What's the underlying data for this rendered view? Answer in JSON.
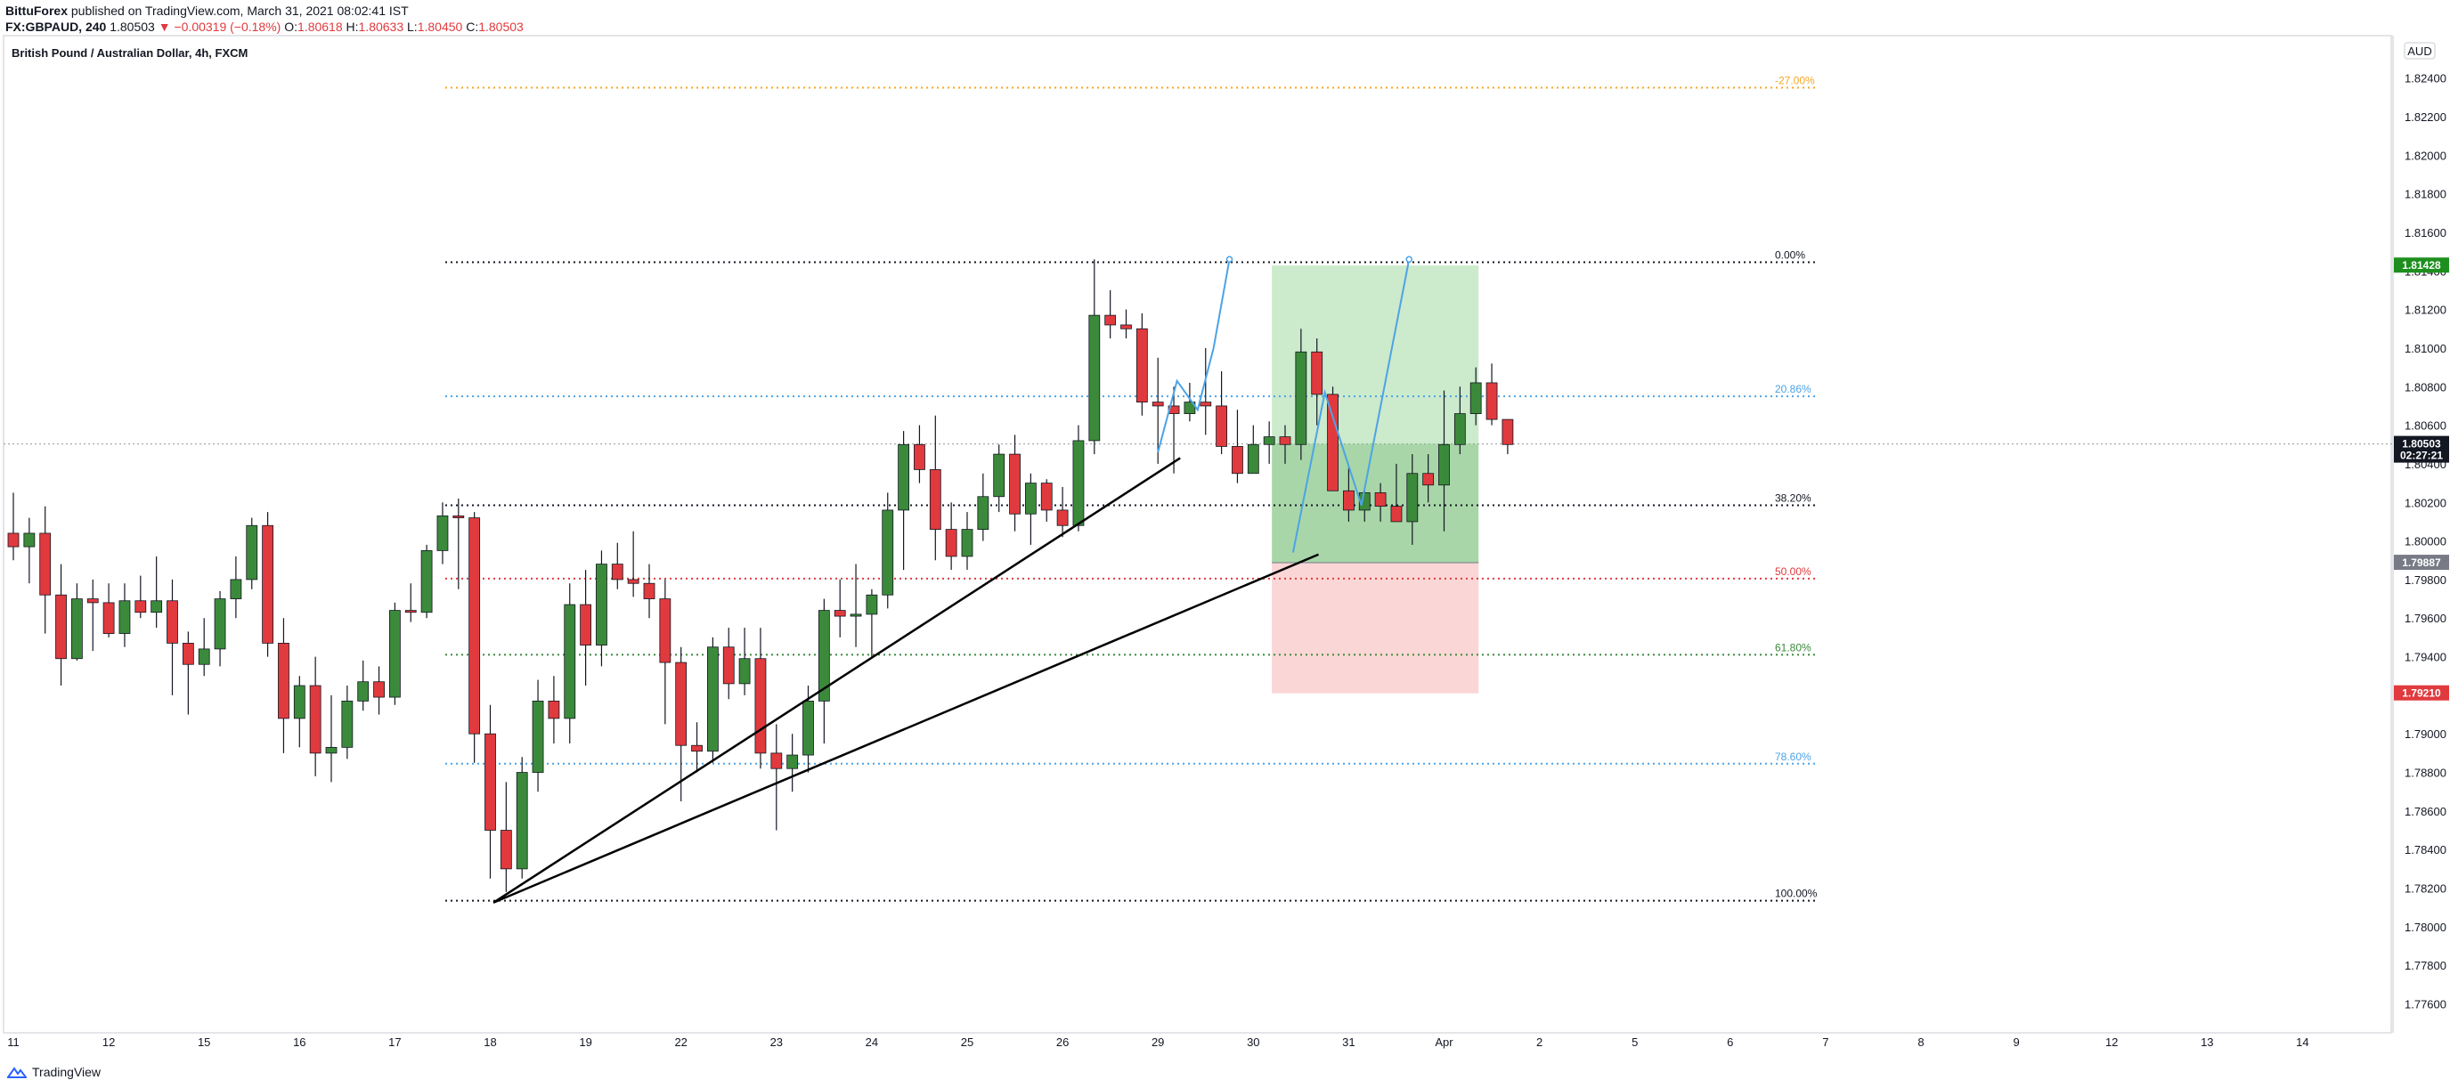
{
  "header": {
    "author": "BittuForex",
    "published_text": "published on TradingView.com, March 31, 2021 08:02:41 IST",
    "symbol": "FX:GBPAUD, 240",
    "last": "1.80503",
    "change": "▼ −0.00319 (−0.18%)",
    "o_label": "O:",
    "o_value": "1.80618",
    "h_label": "H:",
    "h_value": "1.80633",
    "l_label": "L:",
    "l_value": "1.80450",
    "c_label": "C:",
    "c_value": "1.80503"
  },
  "footer": {
    "brand": "TradingView"
  },
  "colors": {
    "up": "#3b8a3b",
    "down": "#e03a3e",
    "wick": "#131722",
    "reward": "#8fd18f",
    "risk": "#f8b4b4",
    "path": "#4da3e6"
  },
  "chart_data": {
    "type": "candlestick",
    "title": "British Pound / Australian Dollar, 4h, FXCM",
    "currency_label": "AUD",
    "ylim": [
      1.7745,
      1.8262
    ],
    "y_ticks": [
      "1.82400",
      "1.82200",
      "1.82000",
      "1.81800",
      "1.81600",
      "1.81400",
      "1.81200",
      "1.81000",
      "1.80800",
      "1.80600",
      "1.80400",
      "1.80200",
      "1.80000",
      "1.79800",
      "1.79600",
      "1.79400",
      "1.79200",
      "1.79000",
      "1.78800",
      "1.78600",
      "1.78400",
      "1.78200",
      "1.78000",
      "1.77800",
      "1.77600"
    ],
    "x_ticks": [
      {
        "label": "11",
        "i": 0
      },
      {
        "label": "12",
        "i": 6
      },
      {
        "label": "15",
        "i": 12
      },
      {
        "label": "16",
        "i": 18
      },
      {
        "label": "17",
        "i": 24
      },
      {
        "label": "18",
        "i": 30
      },
      {
        "label": "19",
        "i": 36
      },
      {
        "label": "22",
        "i": 42
      },
      {
        "label": "23",
        "i": 48
      },
      {
        "label": "24",
        "i": 54
      },
      {
        "label": "25",
        "i": 60
      },
      {
        "label": "26",
        "i": 66
      },
      {
        "label": "29",
        "i": 72
      },
      {
        "label": "30",
        "i": 78
      },
      {
        "label": "31",
        "i": 84
      },
      {
        "label": "Apr",
        "i": 90
      },
      {
        "label": "2",
        "i": 96
      },
      {
        "label": "5",
        "i": 102
      },
      {
        "label": "6",
        "i": 108
      },
      {
        "label": "7",
        "i": 114
      },
      {
        "label": "8",
        "i": 120
      },
      {
        "label": "9",
        "i": 126
      },
      {
        "label": "12",
        "i": 132
      },
      {
        "label": "13",
        "i": 138
      },
      {
        "label": "14",
        "i": 144
      }
    ],
    "candles": [
      [
        1.8004,
        1.8025,
        1.799,
        1.7997
      ],
      [
        1.7997,
        1.8012,
        1.7978,
        1.8004
      ],
      [
        1.8004,
        1.8018,
        1.7952,
        1.7972
      ],
      [
        1.7972,
        1.7988,
        1.7925,
        1.7939
      ],
      [
        1.7939,
        1.7978,
        1.7938,
        1.797
      ],
      [
        1.797,
        1.798,
        1.7943,
        1.7968
      ],
      [
        1.7968,
        1.7978,
        1.795,
        1.7952
      ],
      [
        1.7952,
        1.7978,
        1.7945,
        1.7969
      ],
      [
        1.7969,
        1.7982,
        1.796,
        1.7963
      ],
      [
        1.7963,
        1.7992,
        1.7955,
        1.7969
      ],
      [
        1.7969,
        1.798,
        1.792,
        1.7947
      ],
      [
        1.7947,
        1.7953,
        1.791,
        1.7936
      ],
      [
        1.7936,
        1.796,
        1.793,
        1.7944
      ],
      [
        1.7944,
        1.7974,
        1.7935,
        1.797
      ],
      [
        1.797,
        1.7992,
        1.796,
        1.798
      ],
      [
        1.798,
        1.8012,
        1.7975,
        1.8008
      ],
      [
        1.8008,
        1.8015,
        1.794,
        1.7947
      ],
      [
        1.7947,
        1.796,
        1.789,
        1.7908
      ],
      [
        1.7908,
        1.793,
        1.7893,
        1.7925
      ],
      [
        1.7925,
        1.794,
        1.7878,
        1.789
      ],
      [
        1.789,
        1.792,
        1.7875,
        1.7893
      ],
      [
        1.7893,
        1.7925,
        1.7887,
        1.7917
      ],
      [
        1.7917,
        1.7938,
        1.7912,
        1.7927
      ],
      [
        1.7927,
        1.7935,
        1.791,
        1.7919
      ],
      [
        1.7919,
        1.7968,
        1.7915,
        1.7964
      ],
      [
        1.7964,
        1.7978,
        1.7958,
        1.7963
      ],
      [
        1.7963,
        1.7998,
        1.796,
        1.7995
      ],
      [
        1.7995,
        1.802,
        1.7988,
        1.8013
      ],
      [
        1.8013,
        1.8022,
        1.7975,
        1.8012
      ],
      [
        1.8012,
        1.8015,
        1.7885,
        1.79
      ],
      [
        1.79,
        1.7915,
        1.7825,
        1.785
      ],
      [
        1.785,
        1.7875,
        1.7818,
        1.783
      ],
      [
        1.783,
        1.7888,
        1.7825,
        1.788
      ],
      [
        1.788,
        1.7928,
        1.787,
        1.7917
      ],
      [
        1.7917,
        1.793,
        1.7895,
        1.7908
      ],
      [
        1.7908,
        1.7978,
        1.7895,
        1.7967
      ],
      [
        1.7967,
        1.7985,
        1.7925,
        1.7946
      ],
      [
        1.7946,
        1.7995,
        1.7935,
        1.7988
      ],
      [
        1.7988,
        1.7999,
        1.7975,
        1.798
      ],
      [
        1.798,
        1.8005,
        1.7971,
        1.7978
      ],
      [
        1.7978,
        1.7988,
        1.796,
        1.797
      ],
      [
        1.797,
        1.798,
        1.7905,
        1.7937
      ],
      [
        1.7937,
        1.7945,
        1.7865,
        1.7894
      ],
      [
        1.7894,
        1.7906,
        1.788,
        1.7891
      ],
      [
        1.7891,
        1.795,
        1.7885,
        1.7945
      ],
      [
        1.7945,
        1.7955,
        1.7918,
        1.7926
      ],
      [
        1.7926,
        1.7955,
        1.792,
        1.7939
      ],
      [
        1.7939,
        1.7955,
        1.7882,
        1.789
      ],
      [
        1.789,
        1.7905,
        1.785,
        1.7882
      ],
      [
        1.7882,
        1.79,
        1.787,
        1.7889
      ],
      [
        1.7889,
        1.7925,
        1.788,
        1.7917
      ],
      [
        1.7917,
        1.797,
        1.7895,
        1.7964
      ],
      [
        1.7964,
        1.798,
        1.795,
        1.7961
      ],
      [
        1.7961,
        1.7988,
        1.7945,
        1.7962
      ],
      [
        1.7962,
        1.7975,
        1.794,
        1.7972
      ],
      [
        1.7972,
        1.8025,
        1.7965,
        1.8016
      ],
      [
        1.8016,
        1.8057,
        1.7985,
        1.805
      ],
      [
        1.805,
        1.806,
        1.803,
        1.8037
      ],
      [
        1.8037,
        1.8065,
        1.799,
        1.8006
      ],
      [
        1.8006,
        1.802,
        1.7985,
        1.7992
      ],
      [
        1.7992,
        1.8015,
        1.7985,
        1.8006
      ],
      [
        1.8006,
        1.8035,
        1.8,
        1.8023
      ],
      [
        1.8023,
        1.805,
        1.8015,
        1.8045
      ],
      [
        1.8045,
        1.8055,
        1.8005,
        1.8014
      ],
      [
        1.8014,
        1.8035,
        1.7998,
        1.803
      ],
      [
        1.803,
        1.8032,
        1.801,
        1.8016
      ],
      [
        1.8016,
        1.8028,
        1.8002,
        1.8008
      ],
      [
        1.8008,
        1.806,
        1.8005,
        1.8052
      ],
      [
        1.8052,
        1.8146,
        1.8045,
        1.8117
      ],
      [
        1.8117,
        1.813,
        1.8105,
        1.8112
      ],
      [
        1.8112,
        1.812,
        1.8105,
        1.811
      ],
      [
        1.811,
        1.8118,
        1.8065,
        1.8072
      ],
      [
        1.8072,
        1.8095,
        1.804,
        1.807
      ],
      [
        1.807,
        1.808,
        1.8035,
        1.8066
      ],
      [
        1.8066,
        1.8082,
        1.8062,
        1.8072
      ],
      [
        1.8072,
        1.81,
        1.8055,
        1.807
      ],
      [
        1.807,
        1.8088,
        1.8045,
        1.8049
      ],
      [
        1.8049,
        1.8068,
        1.803,
        1.8035
      ],
      [
        1.8035,
        1.806,
        1.8035,
        1.805
      ],
      [
        1.805,
        1.8062,
        1.804,
        1.8054
      ],
      [
        1.8054,
        1.806,
        1.804,
        1.805
      ],
      [
        1.805,
        1.811,
        1.8042,
        1.8098
      ],
      [
        1.8098,
        1.8105,
        1.806,
        1.8076
      ],
      [
        1.8076,
        1.808,
        1.803,
        1.8026
      ],
      [
        1.8026,
        1.8038,
        1.801,
        1.8016
      ],
      [
        1.8016,
        1.8028,
        1.801,
        1.8025
      ],
      [
        1.8025,
        1.803,
        1.801,
        1.8018
      ],
      [
        1.8018,
        1.804,
        1.801,
        1.801
      ],
      [
        1.801,
        1.8045,
        1.7998,
        1.8035
      ],
      [
        1.8035,
        1.8045,
        1.802,
        1.8029
      ],
      [
        1.8029,
        1.8078,
        1.8005,
        1.805
      ],
      [
        1.805,
        1.808,
        1.8045,
        1.8066
      ],
      [
        1.8066,
        1.809,
        1.806,
        1.8082
      ],
      [
        1.8082,
        1.8092,
        1.806,
        1.8063
      ],
      [
        1.8063,
        1.8063,
        1.8045,
        1.805
      ]
    ],
    "fib_levels": [
      {
        "label": "-27.00%",
        "price": 1.8235,
        "color": "#f5a623"
      },
      {
        "label": "0.00%",
        "price": 1.81445,
        "color": "#131722"
      },
      {
        "label": "20.86%",
        "price": 1.8075,
        "color": "#4da3e6"
      },
      {
        "label": "38.20%",
        "price": 1.80185,
        "color": "#131722"
      },
      {
        "label": "50.00%",
        "price": 1.79805,
        "color": "#e03a3e"
      },
      {
        "label": "61.80%",
        "price": 1.7941,
        "color": "#3b8a3b"
      },
      {
        "label": "78.60%",
        "price": 1.78845,
        "color": "#4da3e6"
      },
      {
        "label": "100.00%",
        "price": 1.78135,
        "color": "#131722"
      }
    ],
    "price_tags": [
      {
        "label": "1.81428",
        "price": 1.81428,
        "color": "#1e8f1e"
      },
      {
        "label": "1.80503",
        "sub": "02:27:21",
        "price": 1.80503,
        "color": "#131722"
      },
      {
        "label": "1.79887",
        "price": 1.79887,
        "color": "#787b86"
      },
      {
        "label": "1.79210",
        "price": 1.7921,
        "color": "#e03a3e"
      }
    ],
    "position": {
      "entry": 1.79887,
      "target": 1.81428,
      "stop": 1.7921,
      "i_start": 79,
      "i_end": 92
    },
    "trendlines": [
      {
        "i1": 30.2,
        "p1": 1.78125,
        "i2": 73.4,
        "p2": 1.8043
      },
      {
        "i1": 30.2,
        "p1": 1.78125,
        "i2": 82.1,
        "p2": 1.7993
      }
    ],
    "projected_path": [
      [
        72,
        1.8046
      ],
      [
        73.2,
        1.8083
      ],
      [
        74.5,
        1.8068
      ],
      [
        75.5,
        1.81
      ],
      [
        76.5,
        1.8146
      ]
    ],
    "projected_path2": [
      [
        80.5,
        1.7994
      ],
      [
        82.5,
        1.8077
      ],
      [
        84.8,
        1.80185
      ],
      [
        87.8,
        1.8146
      ]
    ]
  }
}
